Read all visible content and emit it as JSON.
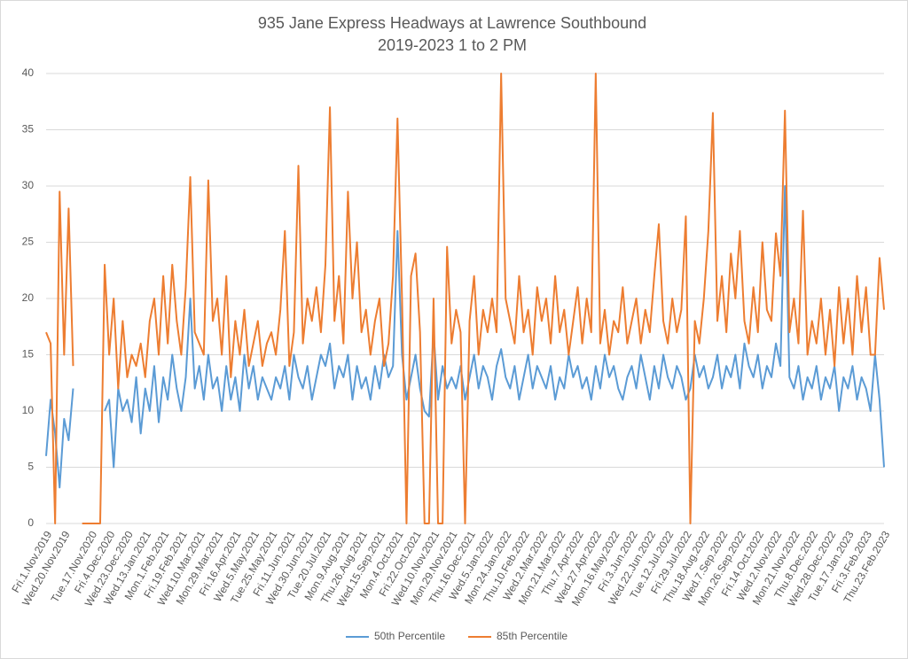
{
  "chart_data": {
    "type": "line",
    "title": "935 Jane Express Headways at Lawrence Southbound",
    "subtitle": "2019-2023 1 to 2 PM",
    "categories": [
      "Fri.1.Nov.2019",
      null,
      null,
      null,
      "Wed.20.Nov.2019",
      null,
      null,
      null,
      null,
      null,
      "Tue.17.Nov.2020",
      null,
      null,
      null,
      "Fri.4.Dec.2020",
      null,
      null,
      null,
      "Wed.23.Dec.2020",
      null,
      null,
      null,
      "Wed.13.Jan.2021",
      null,
      null,
      null,
      "Mon.1.Feb.2021",
      null,
      null,
      null,
      "Fri.19.Feb.2021",
      null,
      null,
      null,
      "Wed.10.Mar.2021",
      null,
      null,
      null,
      "Mon.29.Mar.2021",
      null,
      null,
      null,
      "Fri.16.Apr.2021",
      null,
      null,
      null,
      "Wed.5.May.2021",
      null,
      null,
      null,
      "Tue.25.May.2021",
      null,
      null,
      null,
      "Fri.11.Jun.2021",
      null,
      null,
      null,
      "Wed.30.Jun.2021",
      null,
      null,
      null,
      "Tue.20.Jul.2021",
      null,
      null,
      null,
      "Mon.9.Aug.2021",
      null,
      null,
      null,
      "Thu.26.Aug.2021",
      null,
      null,
      null,
      "Wed.15.Sep.2021",
      null,
      null,
      null,
      "Mon.4.Oct.2021",
      null,
      null,
      null,
      "Fri.22.Oct.2021",
      null,
      null,
      null,
      "Wed.10.Nov.2021",
      null,
      null,
      null,
      "Mon.29.Nov.2021",
      null,
      null,
      null,
      "Thu.16.Dec.2021",
      null,
      null,
      null,
      "Wed.5.Jan.2022",
      null,
      null,
      null,
      "Mon.24.Jan.2022",
      null,
      null,
      null,
      "Thu.10.Feb.2022",
      null,
      null,
      null,
      "Wed.2.Mar.2022",
      null,
      null,
      null,
      "Mon.21.Mar.2022",
      null,
      null,
      null,
      "Thu.7.Apr.2022",
      null,
      null,
      null,
      "Wed.27.Apr.2022",
      null,
      null,
      null,
      "Mon.16.May.2022",
      null,
      null,
      null,
      "Fri.3.Jun.2022",
      null,
      null,
      null,
      "Wed.22.Jun.2022",
      null,
      null,
      null,
      "Tue.12.Jul.2022",
      null,
      null,
      null,
      "Fri.29.Jul.2022",
      null,
      null,
      null,
      "Thu.18.Aug.2022",
      null,
      null,
      null,
      "Wed.7.Sep.2022",
      null,
      null,
      null,
      "Mon.26.Sep.2022",
      null,
      null,
      null,
      "Fri.14.Oct.2022",
      null,
      null,
      null,
      "Wed.2.Nov.2022",
      null,
      null,
      null,
      "Mon.21.Nov.2022",
      null,
      null,
      null,
      "Thu.8.Dec.2022",
      null,
      null,
      null,
      "Wed.28.Dec.2022",
      null,
      null,
      null,
      "Tue.17.Jan.2023",
      null,
      null,
      null,
      "Fri.3.Feb.2023",
      null,
      null,
      null,
      "Thu.23.Feb.2023"
    ],
    "series": [
      {
        "name": "50th Percentile",
        "color": "#5b9bd5",
        "values": [
          6,
          11,
          8,
          3.2,
          9.3,
          7.4,
          12,
          null,
          null,
          null,
          null,
          null,
          null,
          10,
          11,
          5,
          12,
          10,
          11,
          9,
          13,
          8,
          12,
          10,
          14,
          9,
          13,
          11,
          15,
          12,
          10,
          13,
          20,
          12,
          14,
          11,
          15,
          12,
          13,
          10,
          14,
          11,
          13,
          10,
          15,
          12,
          14,
          11,
          13,
          12,
          11,
          13,
          12,
          14,
          11,
          15,
          13,
          12,
          14,
          11,
          13,
          15,
          14,
          16,
          12,
          14,
          13,
          15,
          11,
          14,
          12,
          13,
          11,
          14,
          12,
          15,
          13,
          14,
          26,
          15,
          11,
          13,
          15,
          12,
          10,
          9.5,
          17,
          11,
          14,
          12,
          13,
          12,
          14,
          11,
          13,
          15,
          12,
          14,
          13,
          11,
          14,
          15.5,
          13,
          12,
          14,
          11,
          13,
          15,
          12,
          14,
          13,
          12,
          14,
          11,
          13,
          12,
          15,
          13,
          14,
          12,
          13,
          11,
          14,
          12,
          15,
          13,
          14,
          12,
          11,
          13,
          14,
          12,
          15,
          13,
          11,
          14,
          12,
          15,
          13,
          12,
          14,
          13,
          11,
          12,
          15,
          13,
          14,
          12,
          13,
          15,
          12,
          14,
          13,
          15,
          12,
          16,
          14,
          13,
          15,
          12,
          14,
          13,
          16,
          14,
          30,
          13,
          12,
          14,
          11,
          13,
          12,
          14,
          11,
          13,
          12,
          14,
          10,
          13,
          12,
          14,
          11,
          13,
          12,
          10,
          15,
          11,
          5
        ]
      },
      {
        "name": "85th Percentile",
        "color": "#ed7d31",
        "values": [
          17,
          16,
          0,
          29.5,
          15,
          28,
          14,
          null,
          0,
          0,
          0,
          0,
          0,
          23,
          15,
          20,
          12,
          18,
          13,
          15,
          14,
          16,
          13,
          18,
          20,
          15,
          22,
          16,
          23,
          18,
          15,
          21,
          30.8,
          17,
          16,
          15,
          30.5,
          18,
          20,
          15,
          22,
          13,
          18,
          15,
          19,
          14,
          16,
          18,
          14,
          16,
          17,
          15,
          19,
          26,
          14,
          17,
          31.8,
          16,
          20,
          18,
          21,
          17,
          23,
          37,
          18,
          22,
          16,
          29.5,
          20,
          25,
          17,
          19,
          15,
          18,
          20,
          14,
          16,
          22,
          36,
          20,
          0,
          22,
          24,
          17,
          0,
          0,
          20,
          0,
          0,
          24.6,
          16,
          19,
          17,
          0,
          18,
          22,
          15,
          19,
          17,
          20,
          17,
          40,
          20,
          18,
          16,
          22,
          17,
          19,
          15,
          21,
          18,
          20,
          16,
          22,
          17,
          19,
          15,
          18,
          21,
          16,
          20,
          17,
          40,
          16,
          19,
          15,
          18,
          17,
          21,
          16,
          18,
          20,
          16,
          19,
          17,
          22,
          26.6,
          18,
          16,
          20,
          17,
          19,
          27.3,
          0,
          18,
          16,
          20,
          26,
          36.5,
          18,
          22,
          17,
          24,
          20,
          26,
          18,
          16,
          21,
          17,
          25,
          19,
          18,
          25.8,
          22,
          36.7,
          17,
          20,
          16,
          27.8,
          15,
          18,
          16,
          20,
          15,
          19,
          14,
          21,
          16,
          20,
          15,
          22,
          17,
          21,
          15,
          15,
          23.6,
          19
        ]
      }
    ],
    "ylim": [
      0,
      40
    ],
    "yticks": [
      0,
      5,
      10,
      15,
      20,
      25,
      30,
      35,
      40
    ],
    "grid": true,
    "legend": "bottom"
  }
}
